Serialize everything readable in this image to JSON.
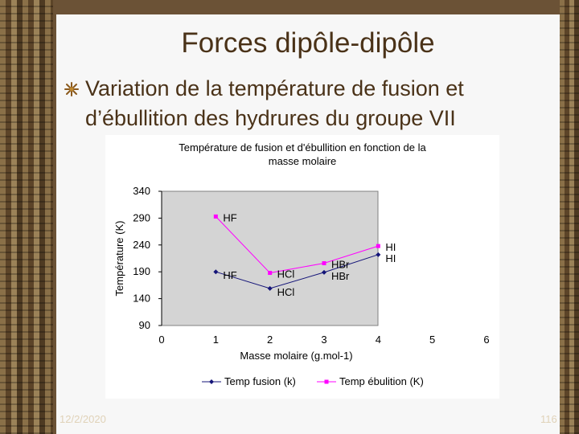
{
  "slide": {
    "title": "Forces dipôle-dipôle",
    "subtitle": "Variation de la température de fusion et d’ébullition des hydrures du groupe VII",
    "date": "12/2/2020",
    "page_number": "116"
  },
  "chart_data": {
    "type": "line",
    "title": "Température de fusion et d'ébullition en fonction de la masse molaire",
    "title_lines": [
      "Température de fusion et d'ébullition en fonction de la",
      "masse molaire"
    ],
    "xlabel": "Masse molaire (g.mol-1)",
    "ylabel": "Température (K)",
    "xlim": [
      0,
      6
    ],
    "ylim": [
      90,
      340
    ],
    "xticks": [
      0,
      1,
      2,
      3,
      4,
      5,
      6
    ],
    "yticks": [
      90,
      140,
      190,
      240,
      290,
      340
    ],
    "grid": false,
    "plot_background": "#d4d4d4",
    "legend_position": "bottom",
    "series": [
      {
        "name": "Temp fusion (k)",
        "color": "#141478",
        "marker": "diamond",
        "x": [
          1,
          2,
          3,
          4
        ],
        "values": [
          190,
          159,
          189,
          222
        ],
        "labels": [
          "HF",
          "HCl",
          "HBr",
          "HI"
        ]
      },
      {
        "name": "Temp ébulition (K)",
        "color": "#ff00ff",
        "marker": "square",
        "x": [
          1,
          2,
          3,
          4
        ],
        "values": [
          293,
          188,
          206,
          238
        ],
        "labels": [
          "HF",
          "HCl",
          "HBr",
          "HI"
        ]
      }
    ]
  }
}
